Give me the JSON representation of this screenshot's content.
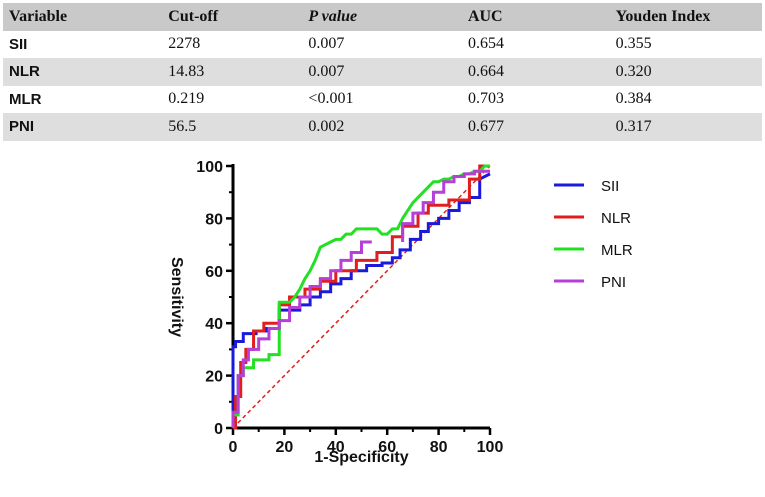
{
  "table": {
    "headers": [
      "Variable",
      "Cut-off",
      "P value",
      "AUC",
      "Youden Index"
    ],
    "rows": [
      [
        "SII",
        "2278",
        "0.007",
        "0.654",
        "0.355"
      ],
      [
        "NLR",
        "14.83",
        "0.007",
        "0.664",
        "0.320"
      ],
      [
        "MLR",
        "0.219",
        "<0.001",
        "0.703",
        "0.384"
      ],
      [
        "PNI",
        "56.5",
        "0.002",
        "0.677",
        "0.317"
      ]
    ]
  },
  "chart_data": {
    "type": "line",
    "title": "",
    "xlabel": "1-Specificity",
    "ylabel": "Sensitivity",
    "xlim": [
      0,
      100
    ],
    "ylim": [
      0,
      100
    ],
    "xticks": [
      "0",
      "20",
      "40",
      "60",
      "80",
      "100"
    ],
    "yticks": [
      "0",
      "20",
      "40",
      "60",
      "80",
      "100"
    ],
    "legend_position": "right",
    "reference_line": {
      "name": "Reference",
      "color": "#e0201b",
      "style": "dashed",
      "x": [
        0,
        100
      ],
      "y": [
        0,
        100
      ]
    },
    "series": [
      {
        "name": "SII",
        "color": "#1a1adb",
        "x": [
          0,
          0,
          1,
          1,
          4,
          4,
          9,
          9,
          13,
          13,
          18,
          18,
          26,
          26,
          30,
          30,
          34,
          34,
          38,
          38,
          42,
          42,
          46,
          46,
          52,
          52,
          58,
          58,
          62,
          62,
          65,
          65,
          69,
          69,
          73,
          73,
          76,
          76,
          80,
          80,
          84,
          84,
          88,
          88,
          92,
          92,
          96,
          96,
          100
        ],
        "y": [
          0,
          31,
          31,
          33,
          33,
          36,
          36,
          37,
          37,
          38,
          38,
          45,
          45,
          47,
          47,
          50,
          50,
          52,
          52,
          55,
          55,
          57,
          57,
          60,
          60,
          62,
          62,
          63,
          63,
          65,
          65,
          68,
          68,
          72,
          72,
          75,
          75,
          78,
          78,
          80,
          80,
          83,
          83,
          86,
          86,
          88,
          88,
          95,
          97
        ]
      },
      {
        "name": "NLR",
        "color": "#e01e1e",
        "x": [
          0,
          1,
          1,
          3,
          3,
          5,
          5,
          8,
          8,
          12,
          12,
          18,
          18,
          22,
          22,
          28,
          28,
          34,
          34,
          40,
          40,
          48,
          48,
          56,
          56,
          62,
          62,
          66,
          66,
          72,
          72,
          76,
          76,
          84,
          84,
          92,
          92,
          96,
          96,
          100
        ],
        "y": [
          0,
          0,
          12,
          12,
          25,
          25,
          30,
          30,
          37,
          37,
          40,
          40,
          47,
          47,
          50,
          50,
          53,
          53,
          56,
          56,
          60,
          60,
          64,
          64,
          67,
          67,
          73,
          73,
          77,
          77,
          82,
          82,
          85,
          85,
          87,
          87,
          95,
          95,
          100,
          100
        ]
      },
      {
        "name": "MLR",
        "color": "#22e022",
        "x": [
          0,
          0,
          2,
          2,
          4,
          4,
          8,
          8,
          14,
          14,
          18,
          18,
          22,
          24,
          26,
          28,
          30,
          32,
          34,
          36,
          38,
          40,
          42,
          44,
          46,
          48,
          50,
          52,
          54,
          56,
          58,
          60,
          62,
          64,
          66,
          68,
          70,
          72,
          74,
          76,
          78,
          80,
          82,
          84,
          86,
          88,
          90,
          92,
          94,
          96,
          98,
          100
        ],
        "y": [
          0,
          5,
          5,
          20,
          20,
          23,
          23,
          26,
          26,
          28,
          28,
          48,
          48,
          50,
          53,
          57,
          60,
          64,
          69,
          70,
          71,
          72,
          72,
          74,
          74,
          76,
          76,
          76,
          76,
          76,
          74,
          74,
          76,
          76,
          80,
          83,
          86,
          88,
          90,
          92,
          94,
          94,
          95,
          95,
          96,
          96,
          97,
          97,
          98,
          98,
          100,
          100
        ]
      },
      {
        "name": "PNI",
        "color": "#b53fd8",
        "x": [
          0,
          0,
          2,
          2,
          4,
          4,
          6,
          6,
          10,
          10,
          14,
          14,
          18,
          18,
          22,
          22,
          26,
          26,
          30,
          30,
          34,
          34,
          38,
          38,
          42,
          42,
          46,
          46,
          50,
          50,
          54
        ],
        "y": [
          0,
          6,
          6,
          20,
          20,
          26,
          26,
          30,
          30,
          34,
          34,
          38,
          38,
          41,
          41,
          46,
          46,
          50,
          50,
          54,
          54,
          57,
          57,
          60,
          60,
          64,
          64,
          67,
          67,
          71,
          71
        ]
      },
      {
        "name": "PNI",
        "color": "#b53fd8",
        "x": [
          66,
          66,
          70,
          70,
          74,
          74,
          78,
          78,
          82,
          82,
          86,
          86,
          90,
          90,
          94,
          94,
          100
        ],
        "y": [
          71,
          78,
          78,
          82,
          82,
          86,
          86,
          90,
          90,
          94,
          94,
          96,
          96,
          97,
          97,
          98,
          98
        ]
      }
    ]
  }
}
